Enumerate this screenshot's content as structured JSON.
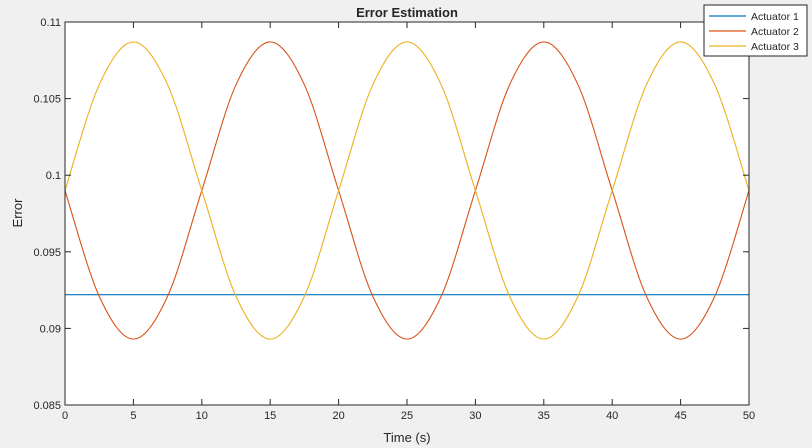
{
  "chart_data": {
    "type": "line",
    "title": "Error Estimation",
    "xlabel": "Time (s)",
    "ylabel": "Error",
    "xlim": [
      0,
      50
    ],
    "ylim": [
      0.085,
      0.11
    ],
    "xticks": [
      0,
      5,
      10,
      15,
      20,
      25,
      30,
      35,
      40,
      45,
      50
    ],
    "xtick_labels": [
      "0",
      "5",
      "10",
      "15",
      "20",
      "25",
      "30",
      "35",
      "40",
      "45",
      "50"
    ],
    "yticks": [
      0.085,
      0.09,
      0.095,
      0.1,
      0.105,
      0.11
    ],
    "ytick_labels": [
      "0.085",
      "0.09",
      "0.095",
      "0.1",
      "0.105",
      "0.11"
    ],
    "grid": false,
    "legend_position": "top-right",
    "series": [
      {
        "name": "Actuator 1",
        "color": "#0072bd",
        "x": [
          0,
          50
        ],
        "values": [
          0.0922,
          0.0922
        ]
      },
      {
        "name": "Actuator 2",
        "color": "#d95319",
        "x": [
          0,
          2.5,
          5,
          7.5,
          10,
          12.5,
          15,
          17.5,
          20,
          22.5,
          25,
          27.5,
          30,
          32.5,
          35,
          37.5,
          40,
          42.5,
          45,
          47.5,
          50
        ],
        "values": [
          0.099,
          0.0921,
          0.0893,
          0.0921,
          0.099,
          0.1059,
          0.1087,
          0.1059,
          0.099,
          0.0921,
          0.0893,
          0.0921,
          0.099,
          0.1059,
          0.1087,
          0.1059,
          0.099,
          0.0921,
          0.0893,
          0.0921,
          0.099
        ]
      },
      {
        "name": "Actuator 3",
        "color": "#edb120",
        "x": [
          0,
          2.5,
          5,
          7.5,
          10,
          12.5,
          15,
          17.5,
          20,
          22.5,
          25,
          27.5,
          30,
          32.5,
          35,
          37.5,
          40,
          42.5,
          45,
          47.5,
          50
        ],
        "values": [
          0.099,
          0.1059,
          0.1087,
          0.1059,
          0.099,
          0.0921,
          0.0893,
          0.0921,
          0.099,
          0.1059,
          0.1087,
          0.1059,
          0.099,
          0.0921,
          0.0893,
          0.0921,
          0.099,
          0.1059,
          0.1087,
          0.1059,
          0.099
        ]
      }
    ]
  }
}
